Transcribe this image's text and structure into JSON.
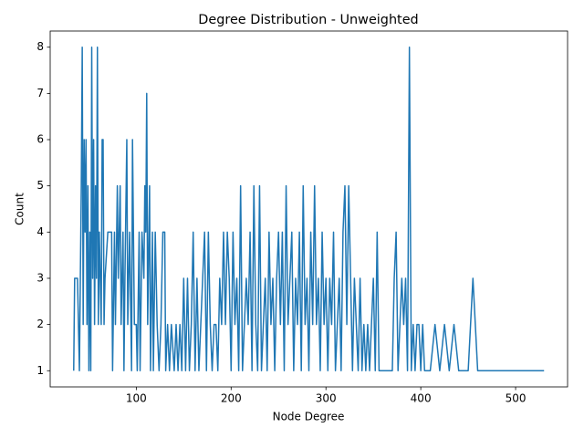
{
  "chart_data": {
    "type": "line",
    "title": "Degree Distribution - Unweighted",
    "x_label": "Node Degree",
    "y_label": "Count",
    "color": "#1f77b4",
    "x": [
      34,
      35,
      38,
      40,
      41,
      42,
      43,
      44,
      45,
      46,
      47,
      48,
      49,
      50,
      51,
      52,
      53,
      54,
      55,
      56,
      57,
      58,
      59,
      60,
      61,
      62,
      63,
      64,
      65,
      66,
      67,
      70,
      72,
      74,
      75,
      77,
      78,
      80,
      81,
      83,
      84,
      86,
      87,
      88,
      90,
      91,
      93,
      95,
      96,
      98,
      100,
      101,
      103,
      104,
      106,
      108,
      109,
      110,
      111,
      112,
      114,
      115,
      117,
      118,
      120,
      122,
      124,
      126,
      128,
      130,
      131,
      133,
      135,
      137,
      140,
      142,
      144,
      146,
      148,
      150,
      152,
      154,
      156,
      158,
      160,
      162,
      164,
      166,
      168,
      170,
      172,
      174,
      176,
      178,
      180,
      182,
      184,
      186,
      188,
      190,
      192,
      194,
      196,
      198,
      200,
      202,
      204,
      206,
      208,
      210,
      212,
      214,
      216,
      218,
      220,
      222,
      224,
      226,
      228,
      230,
      232,
      234,
      236,
      238,
      240,
      242,
      244,
      246,
      248,
      250,
      252,
      254,
      256,
      258,
      260,
      262,
      264,
      266,
      268,
      270,
      272,
      274,
      276,
      278,
      280,
      282,
      284,
      286,
      288,
      290,
      292,
      294,
      296,
      298,
      300,
      302,
      304,
      306,
      308,
      310,
      312,
      314,
      316,
      318,
      320,
      322,
      324,
      326,
      328,
      330,
      332,
      334,
      336,
      338,
      340,
      342,
      344,
      346,
      348,
      350,
      352,
      354,
      356,
      358,
      360,
      365,
      370,
      372,
      374,
      376,
      378,
      380,
      382,
      384,
      386,
      388,
      390,
      392,
      394,
      396,
      398,
      400,
      402,
      404,
      410,
      415,
      420,
      425,
      430,
      435,
      440,
      450,
      455,
      460,
      530
    ],
    "values": [
      1,
      3,
      3,
      1,
      3,
      5,
      8,
      2,
      6,
      4,
      6,
      2,
      5,
      1,
      4,
      1,
      8,
      3,
      6,
      2,
      5,
      3,
      8,
      2,
      4,
      3,
      2,
      6,
      6,
      2,
      3,
      4,
      4,
      4,
      1,
      4,
      2,
      5,
      3,
      5,
      2,
      4,
      1,
      3,
      6,
      2,
      4,
      1,
      6,
      2,
      2,
      1,
      4,
      1,
      4,
      3,
      5,
      4,
      7,
      2,
      5,
      1,
      4,
      1,
      4,
      2,
      1,
      2,
      4,
      4,
      1,
      2,
      1,
      2,
      1,
      2,
      1,
      2,
      1,
      3,
      1,
      3,
      1,
      2,
      4,
      1,
      3,
      1,
      2,
      3,
      4,
      1,
      4,
      2,
      1,
      2,
      2,
      1,
      3,
      2,
      4,
      2,
      4,
      3,
      1,
      4,
      2,
      3,
      1,
      5,
      1,
      2,
      3,
      2,
      4,
      1,
      5,
      2,
      1,
      5,
      1,
      2,
      3,
      1,
      4,
      2,
      3,
      1,
      3,
      4,
      2,
      4,
      1,
      5,
      2,
      3,
      4,
      1,
      3,
      2,
      4,
      1,
      5,
      2,
      3,
      1,
      4,
      2,
      5,
      2,
      3,
      1,
      4,
      2,
      3,
      1,
      3,
      2,
      4,
      1,
      2,
      3,
      1,
      4,
      5,
      2,
      5,
      3,
      1,
      3,
      2,
      1,
      3,
      1,
      2,
      1,
      2,
      1,
      2,
      3,
      1,
      4,
      1,
      1,
      1,
      1,
      1,
      3,
      4,
      1,
      2,
      3,
      2,
      3,
      1,
      8,
      1,
      2,
      1,
      2,
      2,
      1,
      2,
      1,
      1,
      2,
      1,
      2,
      1,
      2,
      1,
      1,
      3,
      1,
      1
    ],
    "xlim": [
      9.2,
      554.8
    ],
    "xticks": [
      100,
      200,
      300,
      400,
      500
    ],
    "ylim": [
      0.65,
      8.35
    ],
    "yticks": [
      1,
      2,
      3,
      4,
      5,
      6,
      7,
      8
    ]
  }
}
